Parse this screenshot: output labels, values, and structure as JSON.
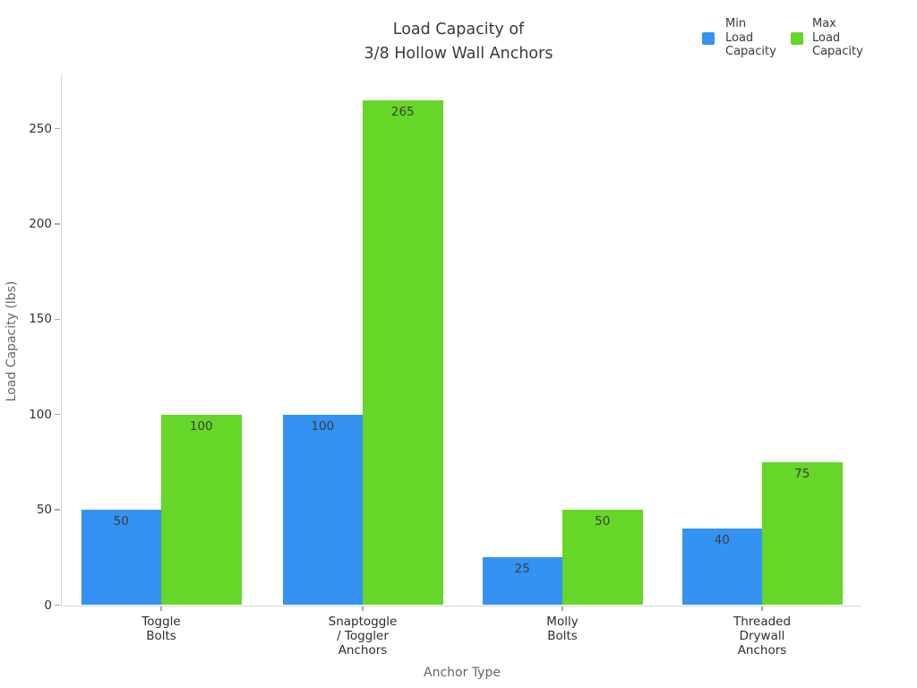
{
  "title": {
    "line1": "Load Capacity of",
    "line2": "3/8 Hollow Wall Anchors"
  },
  "chart_data": {
    "type": "bar",
    "title": "Load Capacity of 3/8 Hollow Wall Anchors",
    "xlabel": "Anchor Type",
    "ylabel": "Load Capacity (lbs)",
    "categories": [
      "Toggle Bolts",
      "Snaptoggle / Toggler Anchors",
      "Molly Bolts",
      "Threaded Drywall Anchors"
    ],
    "category_label_lines": [
      [
        "Toggle",
        "Bolts"
      ],
      [
        "Snaptoggle",
        "/ Toggler",
        "Anchors"
      ],
      [
        "Molly",
        "Bolts"
      ],
      [
        "Threaded",
        "Drywall",
        "Anchors"
      ]
    ],
    "series": [
      {
        "name": "Min Load Capacity",
        "legend_lines": [
          "Min",
          "Load",
          "Capacity"
        ],
        "color": "#3392f2",
        "values": [
          50,
          100,
          25,
          40
        ]
      },
      {
        "name": "Max Load Capacity",
        "legend_lines": [
          "Max",
          "Load",
          "Capacity"
        ],
        "color": "#66d628",
        "values": [
          100,
          265,
          50,
          75
        ]
      }
    ],
    "yticks": [
      0,
      50,
      100,
      150,
      200,
      250
    ],
    "ylim": [
      0,
      277
    ],
    "grid": false,
    "legend_position": "top-right",
    "value_labels_shown": true
  },
  "colors": {
    "min_bar": "#3392f2",
    "max_bar": "#66d628",
    "title_text": "#3a3a3a",
    "tick_text": "#2e2e2e",
    "axis_title_text": "#666666",
    "spine": "#d4d4d4",
    "tick_mark": "#a9a9a9",
    "value_label_text": "#3d3d3d",
    "background": "#ffffff"
  }
}
